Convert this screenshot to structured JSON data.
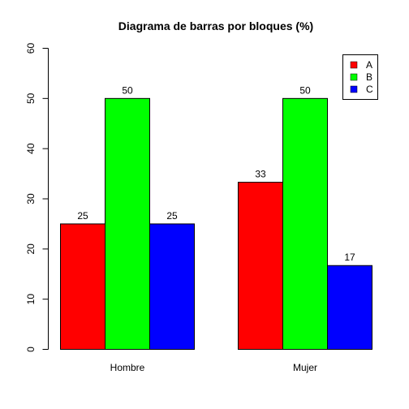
{
  "chart_data": {
    "type": "bar",
    "title": "Diagrama de barras por bloques (%)",
    "xlabel": "",
    "ylabel": "",
    "categories": [
      "Hombre",
      "Mujer"
    ],
    "series": [
      {
        "name": "A",
        "color": "#ff0000",
        "values": [
          25,
          33.3
        ],
        "labels": [
          "25",
          "33"
        ]
      },
      {
        "name": "B",
        "color": "#00ff00",
        "values": [
          50,
          50
        ],
        "labels": [
          "50",
          "50"
        ]
      },
      {
        "name": "C",
        "color": "#0000ff",
        "values": [
          25,
          16.7
        ],
        "labels": [
          "25",
          "17"
        ]
      }
    ],
    "ylim": [
      0,
      60
    ],
    "yticks": [
      0,
      10,
      20,
      30,
      40,
      50,
      60
    ],
    "grid": false,
    "legend_position": "top-right"
  }
}
